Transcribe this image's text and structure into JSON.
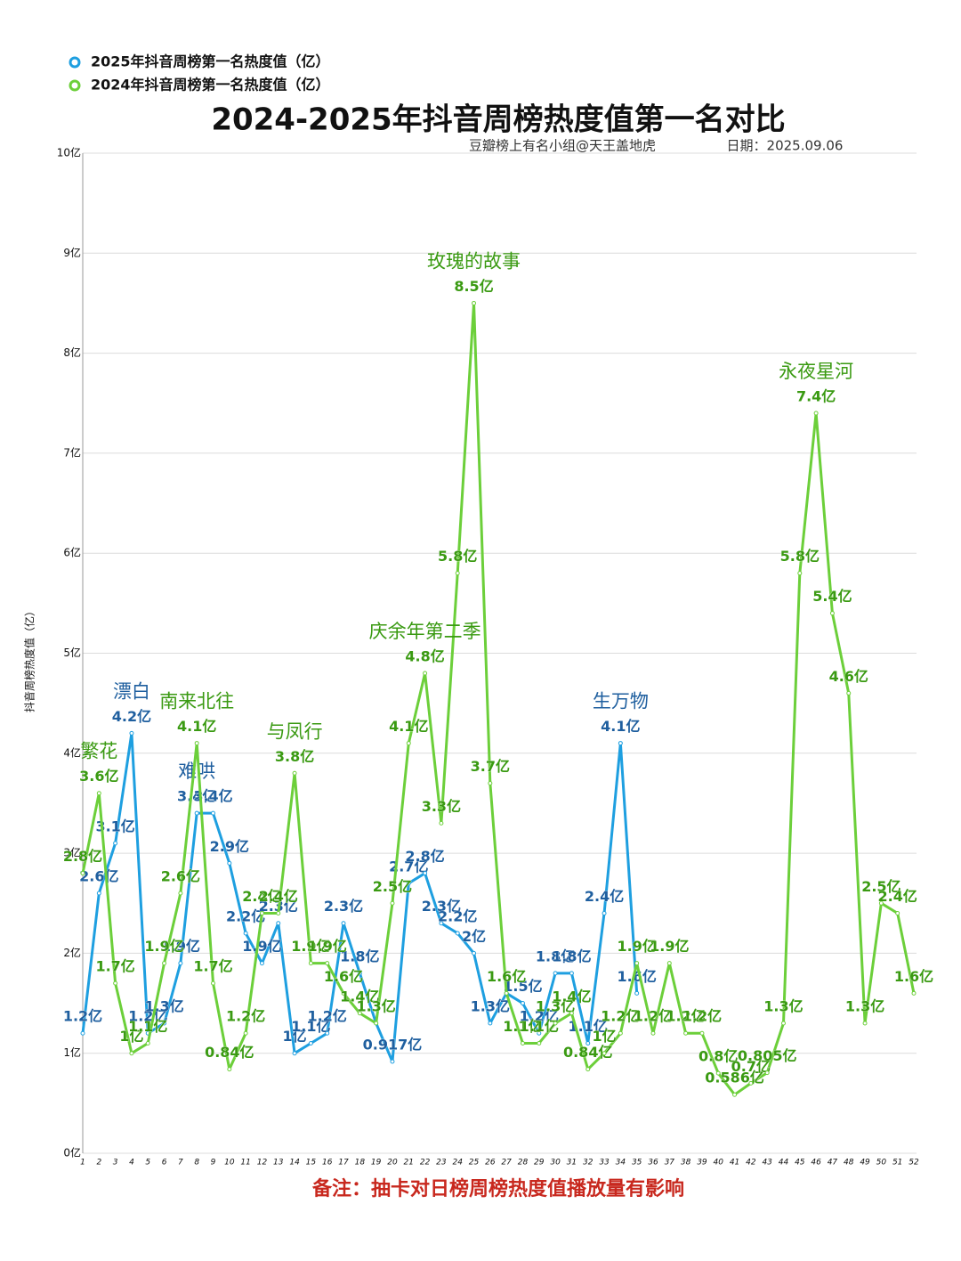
{
  "chart_data": {
    "type": "line",
    "title": "2024-2025年抖音周榜热度值第一名对比",
    "subtitle": [
      "豆瓣榜上有名小组@天王盖地虎",
      "日期：2025.09.06"
    ],
    "ylabel": "抖音周榜热度值（亿）",
    "note": "备注：抽卡对日榜周榜热度值播放量有影响",
    "legend": "top-left",
    "grid": true,
    "categories": [
      "1",
      "2",
      "3",
      "4",
      "5",
      "6",
      "7",
      "8",
      "9",
      "10",
      "11",
      "12",
      "13",
      "14",
      "15",
      "16",
      "17",
      "18",
      "19",
      "20",
      "21",
      "22",
      "23",
      "24",
      "25",
      "26",
      "27",
      "28",
      "29",
      "30",
      "31",
      "32",
      "33",
      "34",
      "35",
      "36",
      "37",
      "38",
      "39",
      "40",
      "41",
      "42",
      "43",
      "44",
      "45",
      "46",
      "47",
      "48",
      "49",
      "50",
      "51",
      "52"
    ],
    "ylim": [
      0,
      10
    ],
    "yticks": [
      {
        "value": 0,
        "label": "0亿"
      },
      {
        "value": 1,
        "label": "1亿"
      },
      {
        "value": 2,
        "label": "2亿"
      },
      {
        "value": 3,
        "label": "3亿"
      },
      {
        "value": 4,
        "label": "4亿"
      },
      {
        "value": 5,
        "label": "5亿"
      },
      {
        "value": 6,
        "label": "6亿"
      },
      {
        "value": 7,
        "label": "7亿"
      },
      {
        "value": 8,
        "label": "8亿"
      },
      {
        "value": 9,
        "label": "9亿"
      },
      {
        "value": 10,
        "label": "10亿"
      }
    ],
    "series": [
      {
        "name": "2025年抖音周榜第一名热度值（亿）",
        "color": "#1e9fe0",
        "label_color": "#1f5f9f",
        "values": [
          1.2,
          2.6,
          3.1,
          4.2,
          1.2,
          1.3,
          1.9,
          3.4,
          3.4,
          2.9,
          2.2,
          1.9,
          2.3,
          1.0,
          1.1,
          1.2,
          2.3,
          1.8,
          1.3,
          0.917,
          2.7,
          2.8,
          2.3,
          2.2,
          2.0,
          1.3,
          1.6,
          1.5,
          1.2,
          1.8,
          1.8,
          1.1,
          2.4,
          4.1,
          1.6,
          null,
          null,
          null,
          null,
          null,
          null,
          null,
          null,
          null,
          null,
          null,
          null,
          null,
          null,
          null,
          null,
          null
        ],
        "value_labels": [
          "1.2亿",
          "2.6亿",
          "3.1亿",
          "4.2亿",
          "1.2亿",
          "1.3亿",
          "1.9亿",
          "3.4亿",
          "3.4亿",
          "2.9亿",
          "2.2亿",
          "1.9亿",
          "2.3亿",
          "1亿",
          "1.1亿",
          "1.2亿",
          "2.3亿",
          "1.8亿",
          "1.3亿",
          "0.917亿",
          "2.7亿",
          "2.8亿",
          "2.3亿",
          "2.2亿",
          "2亿",
          "1.3亿",
          "1.6亿",
          "1.5亿",
          "1.2亿",
          "1.8亿",
          "1.8亿",
          "1.1亿",
          "2.4亿",
          "4.1亿",
          "1.6亿",
          null,
          null,
          null,
          null,
          null,
          null,
          null,
          null,
          null,
          null,
          null,
          null,
          null,
          null,
          null,
          null,
          null
        ],
        "annotations": [
          {
            "x": "4",
            "text": "漂白"
          },
          {
            "x": "8",
            "text": "难哄"
          },
          {
            "x": "34",
            "text": "生万物"
          }
        ]
      },
      {
        "name": "2024年抖音周榜第一名热度值（亿）",
        "color": "#6ccf3a",
        "label_color": "#3a9a12",
        "values": [
          2.8,
          3.6,
          1.7,
          1.0,
          1.1,
          1.9,
          2.6,
          4.1,
          1.7,
          0.84,
          1.2,
          2.4,
          2.4,
          3.8,
          1.9,
          1.9,
          1.6,
          1.4,
          1.3,
          2.5,
          4.1,
          4.8,
          3.3,
          5.8,
          8.5,
          3.7,
          1.6,
          1.1,
          1.1,
          1.3,
          1.4,
          0.84,
          1.0,
          1.2,
          1.9,
          1.2,
          1.9,
          1.2,
          1.2,
          0.8,
          0.586,
          0.7,
          0.805,
          1.3,
          5.8,
          7.4,
          5.4,
          4.6,
          1.3,
          2.5,
          2.4,
          1.6
        ],
        "value_labels": [
          "2.8亿",
          "3.6亿",
          "1.7亿",
          "1亿",
          "1.1亿",
          "1.9亿",
          "2.6亿",
          "4.1亿",
          "1.7亿",
          "0.84亿",
          "1.2亿",
          "2.4亿",
          "2.4亿",
          "3.8亿",
          "1.9亿",
          "1.9亿",
          "1.6亿",
          "1.4亿",
          "1.3亿",
          "2.5亿",
          "4.1亿",
          "4.8亿",
          "3.3亿",
          "5.8亿",
          "8.5亿",
          "3.7亿",
          "1.6亿",
          "1.1亿",
          "1.1亿",
          "1.3亿",
          "1.4亿",
          "0.84亿",
          "1亿",
          "1.2亿",
          "1.9亿",
          "1.2亿",
          "1.9亿",
          "1.2亿",
          "1.2亿",
          "0.8亿",
          "0.586亿",
          "0.7亿",
          "0.805亿",
          "1.3亿",
          "5.8亿",
          "7.4亿",
          "5.4亿",
          "4.6亿",
          "1.3亿",
          "2.5亿",
          "2.4亿",
          "1.6亿"
        ],
        "annotations": [
          {
            "x": "2",
            "text": "繁花"
          },
          {
            "x": "8",
            "text": "南来北往"
          },
          {
            "x": "14",
            "text": "与凤行"
          },
          {
            "x": "22",
            "text": "庆余年第二季"
          },
          {
            "x": "25",
            "text": "玫瑰的故事"
          },
          {
            "x": "46",
            "text": "永夜星河"
          }
        ]
      }
    ]
  }
}
